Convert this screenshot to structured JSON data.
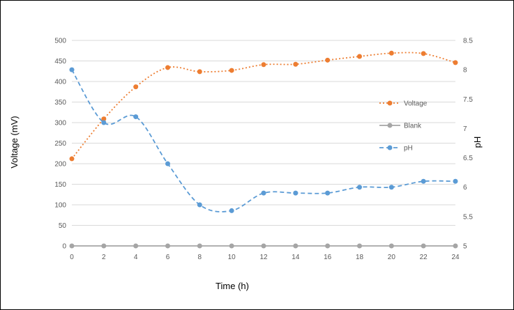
{
  "chart_data": {
    "type": "line",
    "title": "",
    "xlabel": "Time (h)",
    "ylabel": "Voltage (mV)",
    "y2label": "pH",
    "x": [
      0,
      2,
      4,
      6,
      8,
      10,
      12,
      14,
      16,
      18,
      20,
      22,
      24
    ],
    "xlim": [
      0,
      24
    ],
    "ylim": [
      0,
      500
    ],
    "y2lim": [
      5,
      8.5
    ],
    "yticks": [
      0,
      50,
      100,
      150,
      200,
      250,
      300,
      350,
      400,
      450,
      500
    ],
    "y2ticks": [
      "5",
      "5.5",
      "6",
      "6.5",
      "7",
      "7.5",
      "8",
      "8.5"
    ],
    "grid": "horizontal",
    "legend_position": "right",
    "series": [
      {
        "name": "Voltage",
        "axis": "left",
        "color": "#ed7d31",
        "line_style": "dotted",
        "marker": "circle",
        "values": [
          212,
          309,
          387,
          434,
          424,
          427,
          441,
          442,
          452,
          461,
          469,
          468,
          446
        ]
      },
      {
        "name": "Blank",
        "axis": "left",
        "color": "#a5a5a5",
        "line_style": "solid",
        "marker": "circle",
        "values": [
          0,
          0,
          0,
          0,
          0,
          0,
          0,
          0,
          0,
          0,
          0,
          0,
          0
        ]
      },
      {
        "name": "pH",
        "axis": "right",
        "color": "#5b9bd5",
        "line_style": "dashed",
        "marker": "circle",
        "values": [
          8.0,
          7.1,
          7.2,
          6.4,
          5.7,
          5.6,
          5.9,
          5.9,
          5.9,
          6.0,
          6.0,
          6.1,
          6.1
        ]
      }
    ]
  }
}
